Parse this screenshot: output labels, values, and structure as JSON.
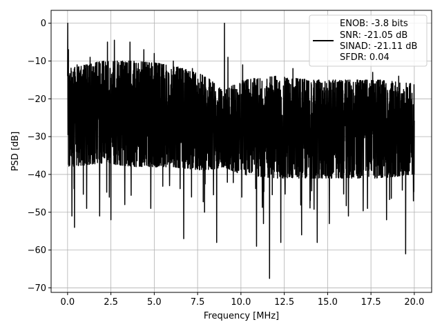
{
  "chart_data": {
    "type": "line",
    "xlabel": "Frequency [MHz]",
    "ylabel": "PSD [dB]",
    "xlim": [
      -0.95,
      21.0
    ],
    "ylim": [
      -71.2,
      3.4
    ],
    "xticks": [
      0.0,
      2.5,
      5.0,
      7.5,
      10.0,
      12.5,
      15.0,
      17.5,
      20.0
    ],
    "xtick_labels": [
      "0.0",
      "2.5",
      "5.0",
      "7.5",
      "10.0",
      "12.5",
      "15.0",
      "17.5",
      "20.0"
    ],
    "yticks": [
      0,
      -10,
      -20,
      -30,
      -40,
      -50,
      -60,
      -70
    ],
    "ytick_labels": [
      "0",
      "−10",
      "−20",
      "−30",
      "−40",
      "−50",
      "−60",
      "−70"
    ],
    "grid": true,
    "legend": {
      "placement": "top-right",
      "entries": [
        "ENOB: -3.8 bits",
        "SNR: -21.05 dB",
        "SINAD: -21.11 dB",
        "SFDR: 0.04"
      ]
    },
    "series": [
      {
        "color": "#000000",
        "x_start": 0.0,
        "x_end": 20.0,
        "noise_envelope": {
          "x": [
            0.0,
            2.0,
            4.0,
            6.0,
            8.0,
            9.0,
            10.0,
            12.0,
            14.0,
            16.0,
            18.0,
            20.0
          ],
          "upper": [
            -12,
            -10,
            -10,
            -11,
            -14,
            -18,
            -15,
            -14,
            -15,
            -15,
            -15,
            -16
          ],
          "lower": [
            -38,
            -37,
            -38,
            -38,
            -39,
            -38,
            -40,
            -41,
            -41,
            -41,
            -41,
            -40
          ]
        },
        "spurs": [
          {
            "x": 0.01,
            "y": 0.0
          },
          {
            "x": 0.05,
            "y": -7
          },
          {
            "x": 0.55,
            "y": -11
          },
          {
            "x": 1.3,
            "y": -9
          },
          {
            "x": 2.3,
            "y": -5
          },
          {
            "x": 2.7,
            "y": -4.5
          },
          {
            "x": 3.6,
            "y": -5
          },
          {
            "x": 4.4,
            "y": -7
          },
          {
            "x": 5.0,
            "y": -8
          },
          {
            "x": 6.1,
            "y": -10
          },
          {
            "x": 7.2,
            "y": -12
          },
          {
            "x": 9.05,
            "y": 0.0
          },
          {
            "x": 9.25,
            "y": -9
          },
          {
            "x": 10.1,
            "y": -11
          },
          {
            "x": 13.0,
            "y": -12
          },
          {
            "x": 17.6,
            "y": -13
          },
          {
            "x": 19.1,
            "y": -14
          }
        ],
        "dips": [
          {
            "x": 0.25,
            "y": -51
          },
          {
            "x": 0.4,
            "y": -54
          },
          {
            "x": 1.1,
            "y": -49
          },
          {
            "x": 1.85,
            "y": -51
          },
          {
            "x": 2.5,
            "y": -52
          },
          {
            "x": 3.3,
            "y": -48
          },
          {
            "x": 4.8,
            "y": -49
          },
          {
            "x": 6.7,
            "y": -57
          },
          {
            "x": 7.9,
            "y": -50
          },
          {
            "x": 8.6,
            "y": -58
          },
          {
            "x": 10.05,
            "y": -46
          },
          {
            "x": 10.9,
            "y": -59
          },
          {
            "x": 11.3,
            "y": -53
          },
          {
            "x": 11.65,
            "y": -67.5
          },
          {
            "x": 12.3,
            "y": -58
          },
          {
            "x": 13.5,
            "y": -56
          },
          {
            "x": 14.4,
            "y": -58
          },
          {
            "x": 15.1,
            "y": -53
          },
          {
            "x": 16.2,
            "y": -51
          },
          {
            "x": 17.3,
            "y": -49
          },
          {
            "x": 18.4,
            "y": -52
          },
          {
            "x": 19.5,
            "y": -61
          },
          {
            "x": 19.95,
            "y": -47
          }
        ]
      }
    ]
  }
}
